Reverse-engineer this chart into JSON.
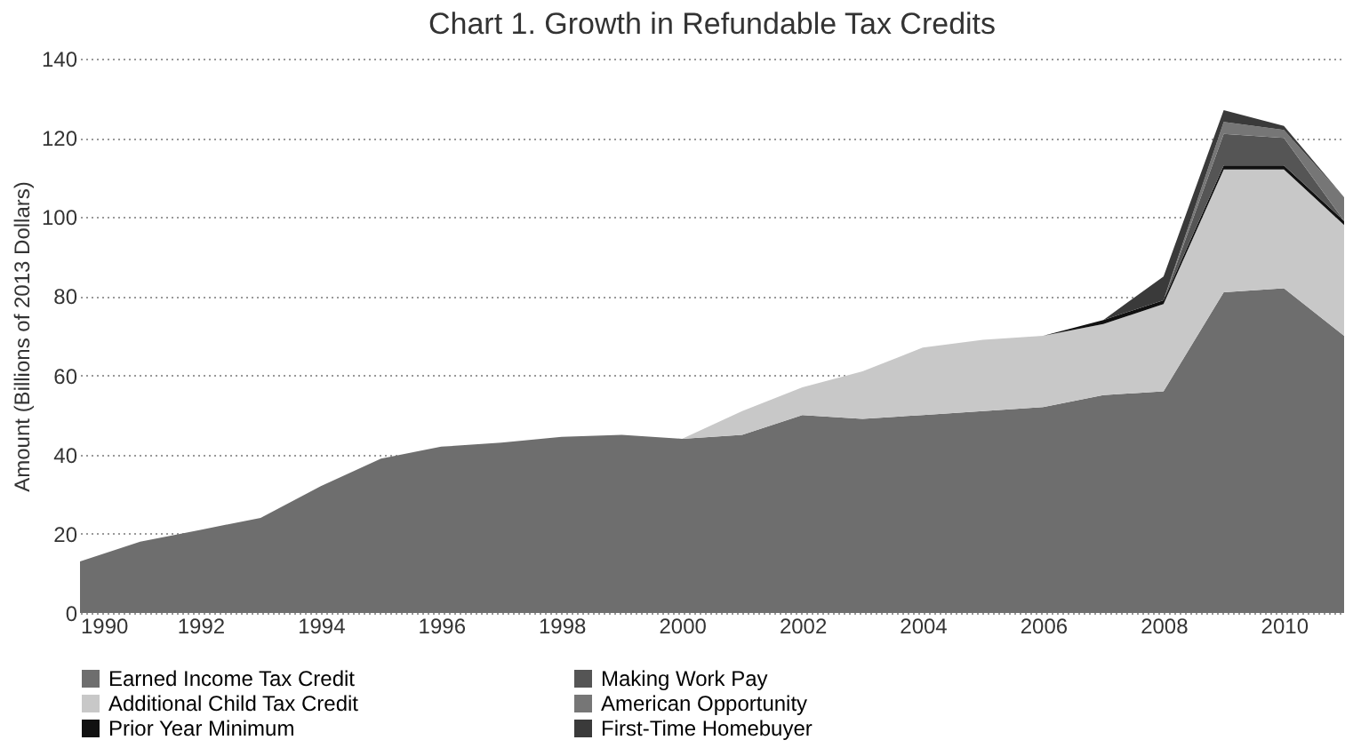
{
  "chart_data": {
    "type": "area",
    "stacked": true,
    "title": "Chart 1. Growth in Refundable Tax Credits",
    "ylabel": "Amount (Billions of 2013 Dollars)",
    "x": [
      1990,
      1991,
      1992,
      1993,
      1994,
      1995,
      1996,
      1997,
      1998,
      1999,
      2000,
      2001,
      2002,
      2003,
      2004,
      2005,
      2006,
      2007,
      2008,
      2009,
      2010,
      2011
    ],
    "series": [
      {
        "name": "Earned Income Tax Credit",
        "color": "#6e6e6e",
        "values": [
          13,
          18,
          21,
          24,
          32,
          39,
          42,
          43,
          44.5,
          45,
          44,
          45,
          50,
          49,
          50,
          51,
          52,
          55,
          56,
          81,
          82,
          70
        ]
      },
      {
        "name": "Additional Child Tax Credit",
        "color": "#c8c8c8",
        "values": [
          0,
          0,
          0,
          0,
          0,
          0,
          0,
          0,
          0,
          0,
          0,
          6,
          7,
          12,
          17,
          18,
          18,
          18,
          22,
          31,
          30,
          28
        ]
      },
      {
        "name": "Prior Year Minimum",
        "color": "#111111",
        "values": [
          0,
          0,
          0,
          0,
          0,
          0,
          0,
          0,
          0,
          0,
          0,
          0,
          0,
          0,
          0,
          0,
          0,
          1,
          1,
          1,
          1,
          1
        ]
      },
      {
        "name": "Making Work Pay",
        "color": "#555555",
        "values": [
          0,
          0,
          0,
          0,
          0,
          0,
          0,
          0,
          0,
          0,
          0,
          0,
          0,
          0,
          0,
          0,
          0,
          0,
          0,
          8,
          7,
          0
        ]
      },
      {
        "name": "American Opportunity",
        "color": "#767676",
        "values": [
          0,
          0,
          0,
          0,
          0,
          0,
          0,
          0,
          0,
          0,
          0,
          0,
          0,
          0,
          0,
          0,
          0,
          0,
          0,
          3,
          2,
          6
        ]
      },
      {
        "name": "First-Time Homebuyer",
        "color": "#3a3a3a",
        "values": [
          0,
          0,
          0,
          0,
          0,
          0,
          0,
          0,
          0,
          0,
          0,
          0,
          0,
          0,
          0,
          0,
          0,
          0,
          6,
          3,
          1,
          0
        ]
      }
    ],
    "xlim": [
      1990,
      2011
    ],
    "xticks": [
      1990,
      1992,
      1994,
      1996,
      1998,
      2000,
      2002,
      2004,
      2006,
      2008,
      2010
    ],
    "ylim": [
      0,
      140
    ],
    "yticks": [
      0,
      20,
      40,
      60,
      80,
      100,
      120,
      140
    ],
    "grid": "y",
    "legend": "bottom"
  }
}
